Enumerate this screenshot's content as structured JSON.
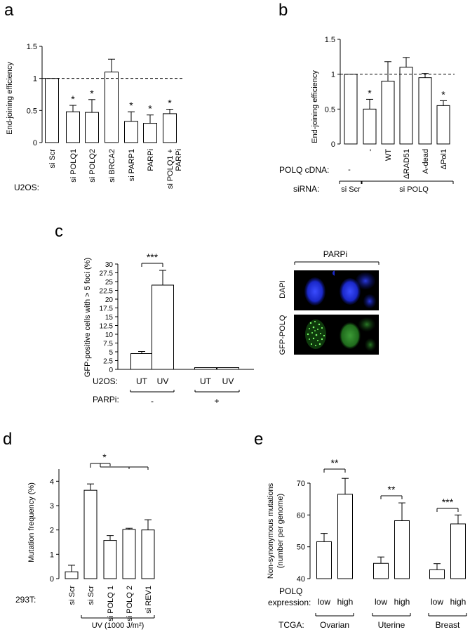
{
  "panel_letters": [
    "a",
    "b",
    "c",
    "d",
    "e"
  ],
  "chart_data": [
    {
      "type": "bar",
      "panel": "a",
      "ylabel": "End-joining efficiency",
      "ylim": [
        0,
        1.5
      ],
      "yticks": [
        "0",
        "0.5",
        "1",
        "1.5"
      ],
      "reference_line": 1,
      "row_label": "U2OS:",
      "categories": [
        "si Scr",
        "si POLQ1",
        "si POLQ2",
        "si BRCA2",
        "si PARP1",
        "PARPi",
        "si POLQ1 + PARPi"
      ],
      "category_lines": [
        [
          "si Scr"
        ],
        [
          "si POLQ1"
        ],
        [
          "si POLQ2"
        ],
        [
          "si BRCA2"
        ],
        [
          "si PARP1"
        ],
        [
          "PARPi"
        ],
        [
          "si POLQ1 +",
          "PARPi"
        ]
      ],
      "values": [
        1.0,
        0.48,
        0.47,
        1.1,
        0.33,
        0.3,
        0.45
      ],
      "errors": [
        0,
        0.1,
        0.2,
        0.2,
        0.15,
        0.13,
        0.07
      ],
      "marks": [
        "",
        "*",
        "*",
        "",
        "*",
        "*",
        "*"
      ]
    },
    {
      "type": "bar",
      "panel": "b",
      "ylabel": "End-joining efficiency",
      "ylim": [
        0,
        1.5
      ],
      "yticks": [
        "0",
        "0.5",
        "1",
        "1.5"
      ],
      "reference_line": 1,
      "categories": [
        "si Scr",
        "si POLQ -",
        "si POLQ WT",
        "si POLQ ΔRAD51",
        "si POLQ A-dead",
        "si POLQ ΔPol1"
      ],
      "values": [
        1.0,
        0.5,
        0.9,
        1.1,
        0.95,
        0.55
      ],
      "errors": [
        0,
        0.14,
        0.28,
        0.14,
        0.06,
        0.07
      ],
      "marks": [
        "",
        "*",
        "",
        "",
        "",
        "*"
      ],
      "row1": {
        "label": "POLQ cDNA:",
        "items": [
          "-",
          "-",
          "WT",
          "ΔRAD51",
          "A-dead",
          "ΔPol1"
        ]
      },
      "row2": {
        "label": "siRNA:",
        "groups": [
          "si Scr",
          "si POLQ"
        ]
      }
    },
    {
      "type": "bar",
      "panel": "c",
      "ylabel": "GFP-positive cells with > 5 foci (%)",
      "ylim": [
        0,
        30
      ],
      "yticks": [
        "0",
        "2.5",
        "5",
        "7.5",
        "10",
        "12.5",
        "15",
        "17.5",
        "20",
        "22.5",
        "25",
        "27.5",
        "30"
      ],
      "categories": [
        "UT",
        "UV",
        "UT",
        "UV"
      ],
      "values": [
        4.5,
        24,
        0.5,
        0.5
      ],
      "errors": [
        0.6,
        4.2,
        0,
        0
      ],
      "significance": "***",
      "row1": {
        "label": "U2OS:",
        "items": [
          "UT",
          "UV",
          "UT",
          "UV"
        ]
      },
      "row2": {
        "label": "PARPi:",
        "groups": [
          "-",
          "+"
        ]
      }
    },
    {
      "type": "bar",
      "panel": "d",
      "ylabel": "Mutation frequency (%)",
      "ylim": [
        0,
        4.5
      ],
      "yticks": [
        "0",
        "1",
        "2",
        "3",
        "4"
      ],
      "row_label": "293T:",
      "categories": [
        "si Scr",
        "si Scr",
        "si POLQ 1",
        "si POLQ 2",
        "si REV1"
      ],
      "values": [
        0.28,
        3.63,
        1.57,
        2.02,
        2.0
      ],
      "errors": [
        0.27,
        0.26,
        0.2,
        0.05,
        0.42
      ],
      "significance": "*",
      "group_label": "UV (1000 J/m²)"
    },
    {
      "type": "bar",
      "panel": "e",
      "ylabel": "Non-synonymous mutations",
      "ylabel2": "(number per genome)",
      "ylim": [
        40,
        70
      ],
      "yticks": [
        "40",
        "50",
        "60",
        "70"
      ],
      "categories": [
        "Ovarian low",
        "Ovarian high",
        "Uterine low",
        "Uterine high",
        "Breast low",
        "Breast high"
      ],
      "values": [
        51.6,
        66.5,
        44.8,
        58.2,
        42.8,
        57.2
      ],
      "errors": [
        2.6,
        5.0,
        2.0,
        5.6,
        1.9,
        2.8
      ],
      "significance": [
        "**",
        "**",
        "***"
      ],
      "row1": {
        "label": "POLQ",
        "label2": "expression:",
        "items": [
          "low",
          "high",
          "low",
          "high",
          "low",
          "high"
        ]
      },
      "row2": {
        "label": "TCGA:",
        "groups": [
          "Ovarian",
          "Uterine",
          "Breast"
        ]
      }
    }
  ],
  "micrograph": {
    "header": "PARPi",
    "columns": [
      "-",
      "+"
    ],
    "rows": [
      "DAPI",
      "GFP-POLQ"
    ],
    "colors": {
      "dapi": "#1f2fd6",
      "gfp": "#3fdc3a",
      "background": "#000000"
    }
  }
}
